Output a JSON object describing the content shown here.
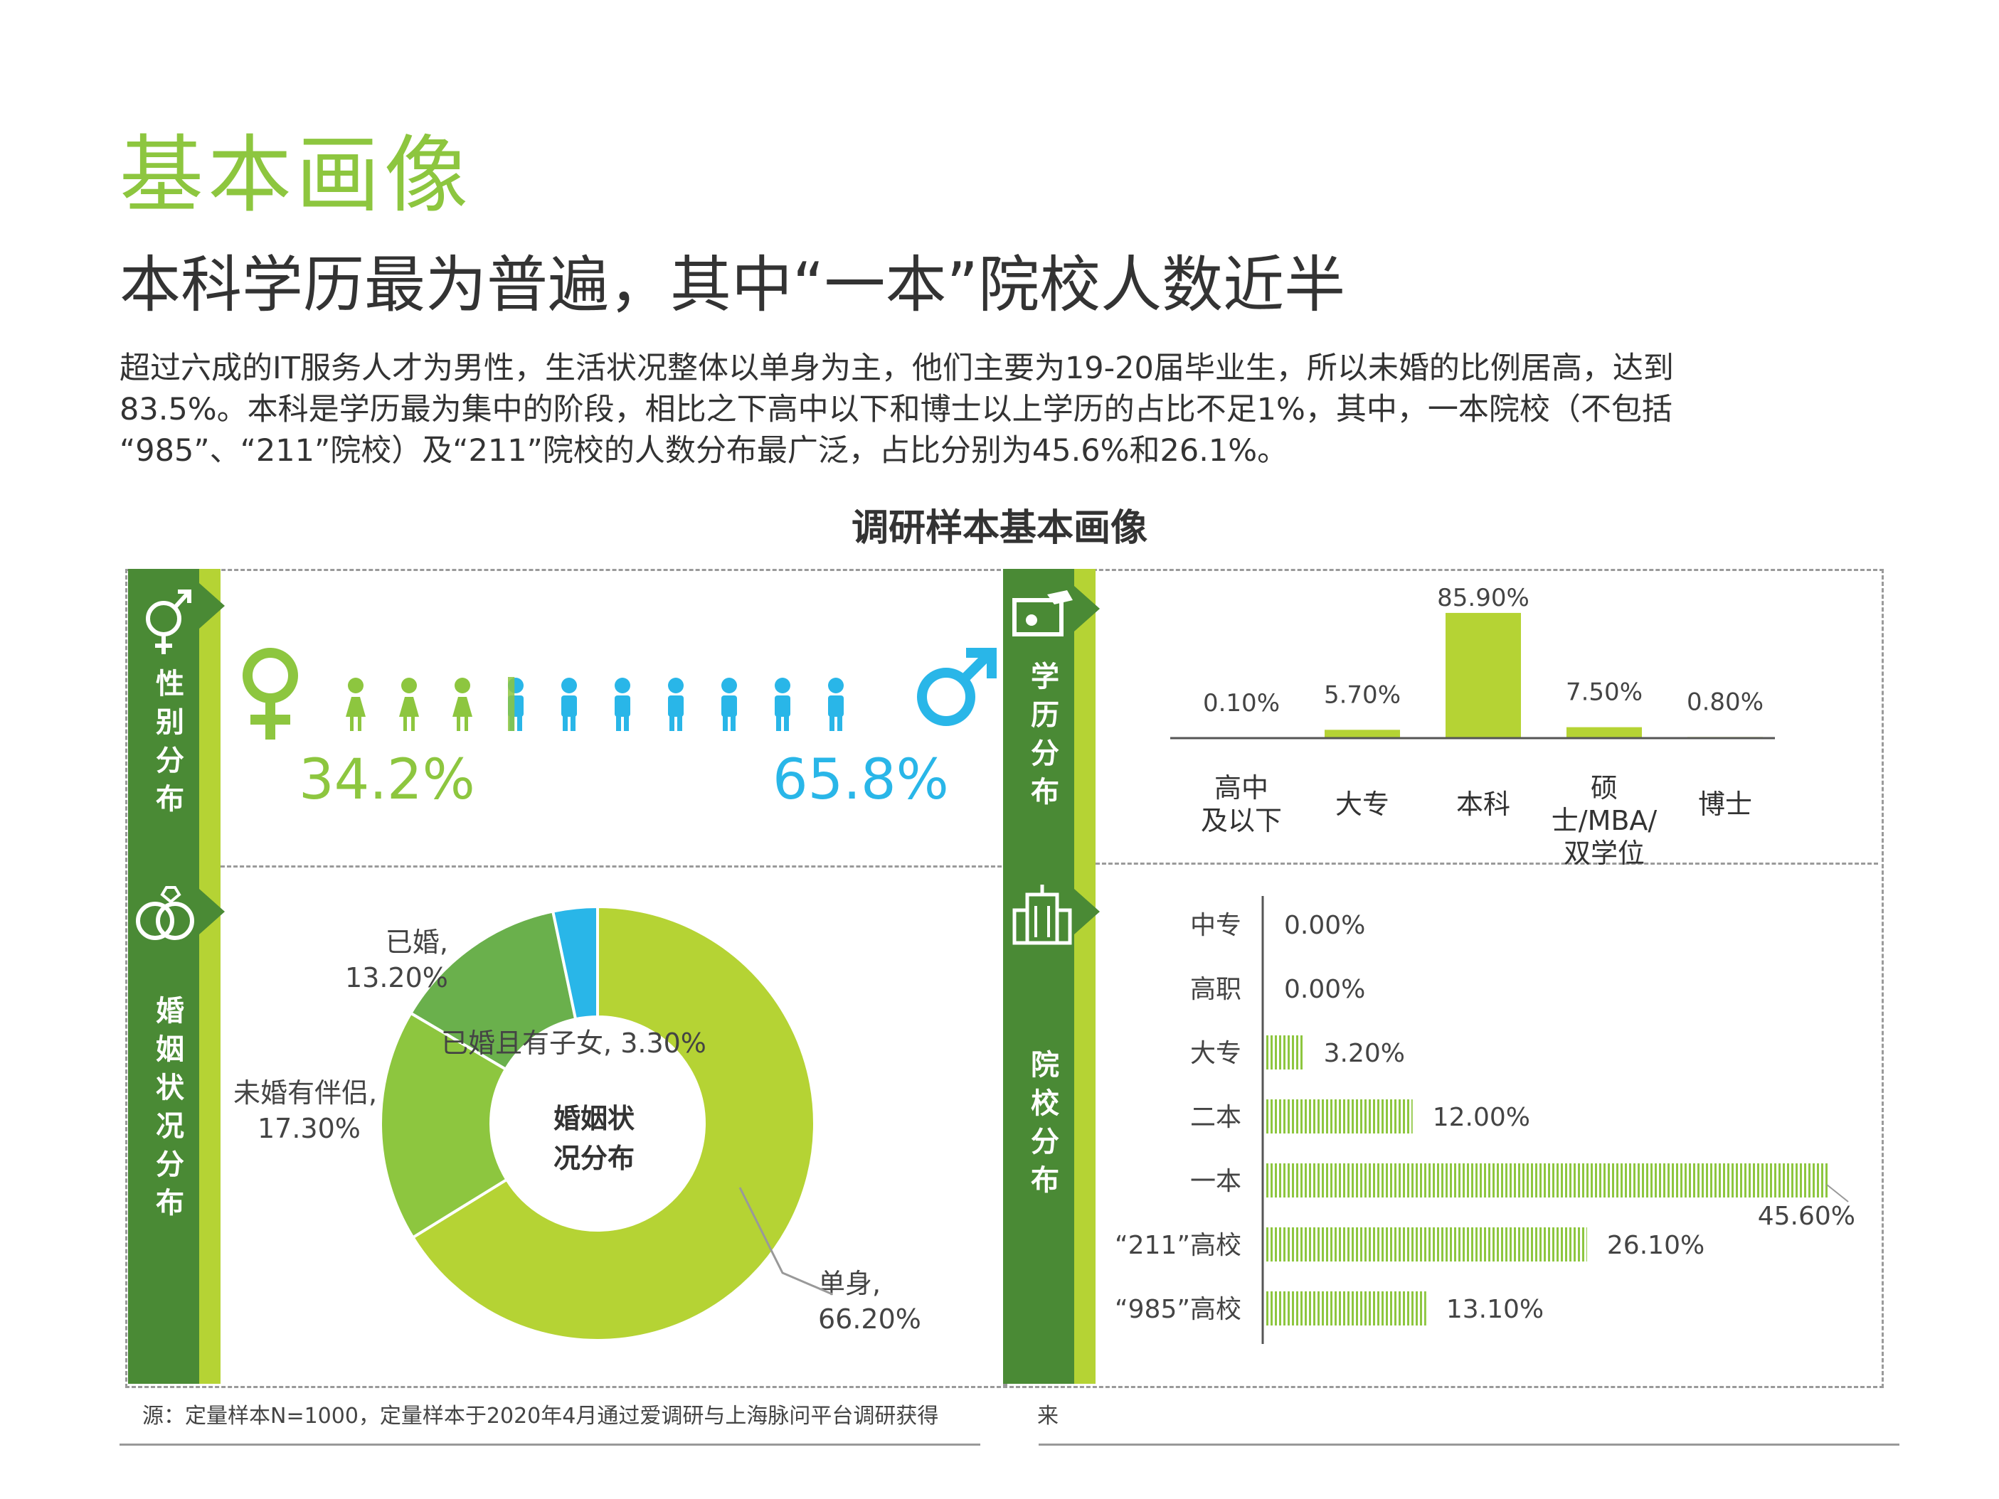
{
  "header": {
    "title": "基本画像",
    "subtitle": "本科学历最为普遍，其中“一本”院校人数近半",
    "paragraph": [
      "超过六成的IT服务人才为男性，生活状况整体以单身为主，他们主要为19-20届毕业生，所以未婚的比例居高，达到",
      "83.5%。本科是学历最为集中的阶段，相比之下高中以下和博士以上学历的占比不足1%，其中，一本院校（不包括",
      "“985”、“211”院校）及“211”院校的人数分布最广泛，占比分别为45.6%和26.1%。"
    ],
    "chart_title": "调研样本基本画像"
  },
  "panels": {
    "gender_label": "性别分布",
    "marriage_label": "婚姻状况分布",
    "education_label": "学历分布",
    "school_label": "院校分布"
  },
  "source": "源：定量样本N=1000，定量样本于2020年4月通过爱调研与上海脉问平台调研获得",
  "source_tail": "来",
  "colors": {
    "green": "#8dc63f",
    "lime": "#b5d334",
    "dark_green": "#4a8a35",
    "mid_green": "#6ab04c",
    "blue": "#29b6e8"
  },
  "chart_data": [
    {
      "type": "pictogram",
      "female_pct": "34.2%",
      "male_pct": "65.8%",
      "values": [
        34.2,
        65.8
      ],
      "icons_total": 10
    },
    {
      "type": "pie",
      "center_label": [
        "婚姻状",
        "况分布"
      ],
      "slices": [
        {
          "name": "单身",
          "value": 66.2,
          "label": "66.20%"
        },
        {
          "name": "未婚有伴侣",
          "value": 17.3,
          "label": "17.30%"
        },
        {
          "name": "已婚",
          "value": 13.2,
          "label": "13.20%"
        },
        {
          "name": "已婚且有子女",
          "value": 3.3,
          "label": "3.30%"
        }
      ]
    },
    {
      "type": "bar",
      "categories": [
        [
          "高中",
          "及以下"
        ],
        [
          "大专"
        ],
        [
          "本科"
        ],
        [
          "硕士/MBA/",
          "双学位"
        ],
        [
          "博士"
        ]
      ],
      "values": [
        0.1,
        5.7,
        85.9,
        7.5,
        0.8
      ],
      "labels": [
        "0.10%",
        "5.70%",
        "85.90%",
        "7.50%",
        "0.80%"
      ],
      "ylim": [
        0,
        100
      ]
    },
    {
      "type": "bar",
      "orientation": "horizontal",
      "categories": [
        "中专",
        "高职",
        "大专",
        "二本",
        "一本",
        "“211”高校",
        "“985”高校"
      ],
      "values": [
        0.0,
        0.0,
        3.2,
        12.0,
        45.6,
        26.1,
        13.1
      ],
      "labels": [
        "0.00%",
        "0.00%",
        "3.20%",
        "12.00%",
        "45.60%",
        "26.10%",
        "13.10%"
      ],
      "xlim": [
        0,
        46
      ]
    }
  ]
}
